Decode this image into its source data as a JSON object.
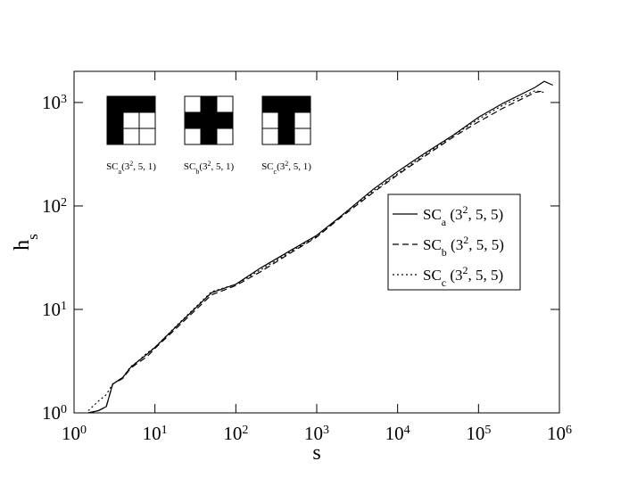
{
  "chart_data": {
    "type": "line",
    "x_label": [
      {
        "text": "s"
      }
    ],
    "y_label": [
      {
        "text": "h"
      },
      {
        "text": "s",
        "shift": "sub"
      }
    ],
    "x": [
      1.5,
      2,
      2.5,
      3,
      4,
      5,
      6,
      8,
      10,
      20,
      50,
      100,
      200,
      500,
      1000,
      2000,
      5000,
      10000,
      20000,
      50000,
      100000,
      200000,
      500000,
      650000,
      830000
    ],
    "series": [
      {
        "name": [
          {
            "text": "SC"
          },
          {
            "text": "a",
            "shift": "sub"
          },
          {
            "text": " (3"
          },
          {
            "text": "2",
            "shift": "super"
          },
          {
            "text": ", 5, 5)"
          }
        ],
        "color": "#000000",
        "dash": "solid",
        "values": [
          1.0,
          1.05,
          1.15,
          1.9,
          2.2,
          2.75,
          3.1,
          3.7,
          4.3,
          7.3,
          14.5,
          17.5,
          25,
          38,
          52,
          80,
          145,
          215,
          310,
          490,
          720,
          980,
          1400,
          1600,
          1470
        ]
      },
      {
        "name": [
          {
            "text": "SC"
          },
          {
            "text": "b",
            "shift": "sub"
          },
          {
            "text": " (3"
          },
          {
            "text": "2",
            "shift": "super"
          },
          {
            "text": ", 5, 5)"
          }
        ],
        "color": "#000000",
        "dash": "dashed",
        "values": [
          1.0,
          1.05,
          1.15,
          1.9,
          2.15,
          2.7,
          3.0,
          3.5,
          4.2,
          7.0,
          13.8,
          17,
          23,
          36,
          50,
          78,
          135,
          200,
          290,
          470,
          650,
          880,
          1250,
          1300,
          null
        ]
      },
      {
        "name": [
          {
            "text": "SC"
          },
          {
            "text": "c",
            "shift": "sub"
          },
          {
            "text": " (3"
          },
          {
            "text": "2",
            "shift": "super"
          },
          {
            "text": ", 5, 5)"
          }
        ],
        "color": "#000000",
        "dash": "dotted",
        "values": [
          1.05,
          1.3,
          1.5,
          1.9,
          2.2,
          2.8,
          3.1,
          3.8,
          4.3,
          7.4,
          14.8,
          17.5,
          24,
          37,
          51,
          80,
          140,
          205,
          300,
          485,
          690,
          940,
          1300,
          1250,
          null
        ]
      }
    ],
    "xlog": true,
    "ylog": true,
    "xlim": [
      1,
      1000000
    ],
    "ylim": [
      1,
      2000
    ],
    "xticks": [
      {
        "value": 1,
        "label": "10",
        "exponent": "0"
      },
      {
        "value": 10,
        "label": "10",
        "exponent": "1"
      },
      {
        "value": 100,
        "label": "10",
        "exponent": "2"
      },
      {
        "value": 1000,
        "label": "10",
        "exponent": "3"
      },
      {
        "value": 10000,
        "label": "10",
        "exponent": "4"
      },
      {
        "value": 100000,
        "label": "10",
        "exponent": "5"
      },
      {
        "value": 1000000,
        "label": "10",
        "exponent": "6"
      }
    ],
    "yticks": [
      {
        "value": 1,
        "label": "10",
        "exponent": "0"
      },
      {
        "value": 10,
        "label": "10",
        "exponent": "1"
      },
      {
        "value": 100,
        "label": "10",
        "exponent": "2"
      },
      {
        "value": 1000,
        "label": "10",
        "exponent": "3"
      }
    ],
    "legend": "right",
    "insets": [
      {
        "caption": [
          {
            "text": "SC"
          },
          {
            "text": "a",
            "shift": "sub"
          },
          {
            "text": "(3"
          },
          {
            "text": "2",
            "shift": "super"
          },
          {
            "text": ", 5, 1)"
          }
        ]
      },
      {
        "caption": [
          {
            "text": "SC"
          },
          {
            "text": "b",
            "shift": "sub"
          },
          {
            "text": "(3"
          },
          {
            "text": "2",
            "shift": "super"
          },
          {
            "text": ", 5, 1)"
          }
        ]
      },
      {
        "caption": [
          {
            "text": "SC"
          },
          {
            "text": "c",
            "shift": "sub"
          },
          {
            "text": "(3"
          },
          {
            "text": "2",
            "shift": "super"
          },
          {
            "text": ", 5, 1)"
          }
        ]
      }
    ]
  }
}
